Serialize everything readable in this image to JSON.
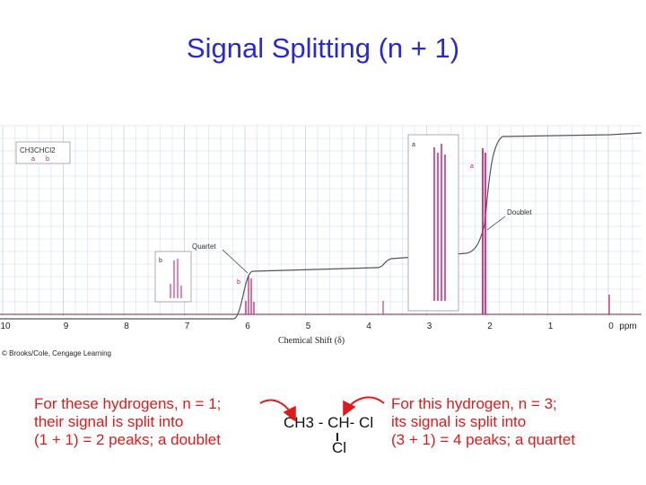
{
  "title": "Signal Splitting (n + 1)",
  "spectrum": {
    "structure_inset": {
      "formula": "CH3CHCl2",
      "label_a": "a",
      "label_b": "b"
    },
    "labels": {
      "quartet": "Quartet",
      "doublet": "Doublet",
      "peak_a": "a",
      "peak_b": "b",
      "inset_a": "a",
      "inset_b": "b"
    },
    "x_ticks": [
      "10",
      "9",
      "8",
      "7",
      "6",
      "5",
      "4",
      "3",
      "2",
      "1",
      "0",
      "ppm"
    ],
    "x_axis_label": "Chemical Shift (δ)",
    "copyright": "© Brooks/Cole, Cengage Learning"
  },
  "annotations": {
    "left": [
      "For these hydrogens, n = 1;",
      "their signal is split into",
      "(1 + 1)  = 2 peaks;  a doublet"
    ],
    "right": [
      "For this hydrogen, n = 3;",
      "its signal is split into",
      "(3 + 1) = 4 peaks; a quartet"
    ],
    "formula_line": "CH3 - CH- Cl",
    "formula_cl": "Cl"
  },
  "colors": {
    "title": "#2929d1",
    "annotation": "#e01a1a",
    "grid": "#c9d8ef",
    "peak": "#c0166d"
  }
}
